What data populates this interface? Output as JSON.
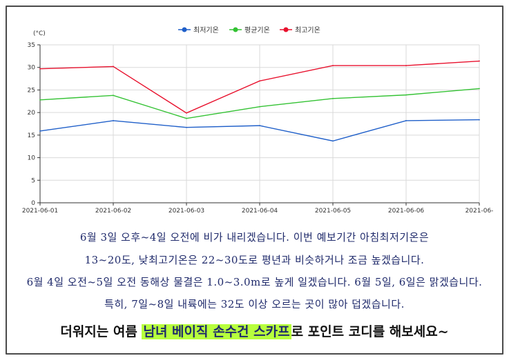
{
  "chart_data": {
    "type": "line",
    "unit": "(°C)",
    "categories": [
      "2021-06-01",
      "2021-06-02",
      "2021-06-03",
      "2021-06-04",
      "2021-06-05",
      "2021-06-06",
      "2021-06-"
    ],
    "ylim": [
      0,
      35
    ],
    "yticks": [
      0,
      5,
      10,
      15,
      20,
      25,
      30,
      35
    ],
    "grid": true,
    "legend_position": "top-center",
    "series": [
      {
        "name": "최저기온",
        "color": "#1f5fc9",
        "values": [
          15.9,
          18.2,
          16.7,
          17.1,
          13.7,
          18.2,
          18.4
        ]
      },
      {
        "name": "평균기온",
        "color": "#33c233",
        "values": [
          22.8,
          23.8,
          18.7,
          21.3,
          23.1,
          23.9,
          25.3
        ]
      },
      {
        "name": "최고기온",
        "color": "#e8112d",
        "values": [
          29.7,
          30.2,
          19.9,
          27.0,
          30.4,
          30.4,
          31.4
        ]
      }
    ]
  },
  "notice_lines": [
    "6월 3일 오후~4일 오전에 비가 내리겠습니다. 이번 예보기간 아침최저기온은",
    "13~20도, 낮최고기온은 22~30도로 평년과 비슷하거나 조금 높겠습니다.",
    "6월 4일 오전~5일 오전 동해상 물결은 1.0~3.0m로 높게 일겠습니다. 6월 5일, 6일은 맑겠습니다.",
    "특히, 7일~8일 내륙에는 32도 이상 오르는 곳이 많아 덥겠습니다."
  ],
  "promo": {
    "part1": "더워지는 여름 ",
    "part2": "남녀 베이직 손수건 스카프",
    "part3": "로 포인트 코디를 해보세요~"
  }
}
